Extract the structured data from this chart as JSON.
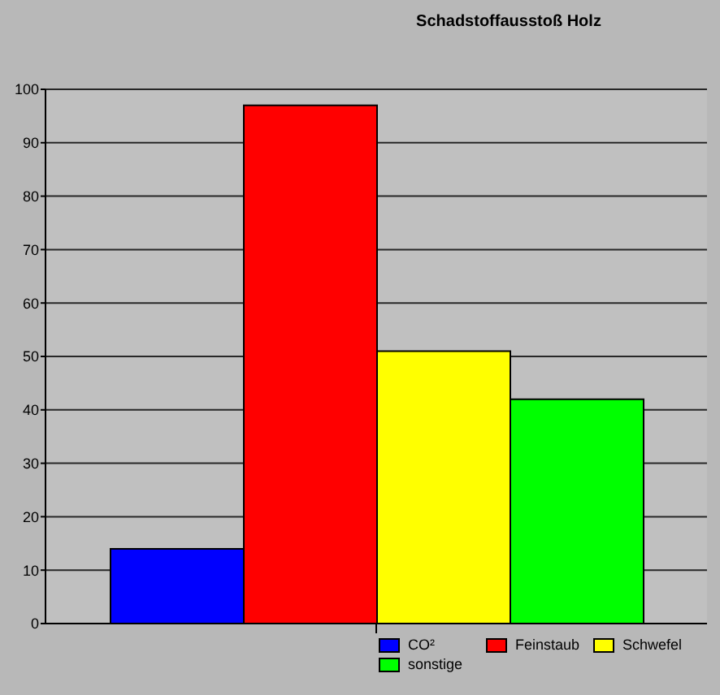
{
  "chart_data": {
    "type": "bar",
    "title": "Schadstoffausstoß Holz",
    "categories": [
      null
    ],
    "series": [
      {
        "name": "CO²",
        "color": "#0000ff",
        "values": [
          14
        ]
      },
      {
        "name": "Feinstaub",
        "color": "#ff0000",
        "values": [
          97
        ]
      },
      {
        "name": "Schwefel",
        "color": "#ffff00",
        "values": [
          51
        ]
      },
      {
        "name": "sonstige",
        "color": "#00ff00",
        "values": [
          42
        ]
      }
    ],
    "ylim": [
      0,
      100
    ],
    "yticks": [
      0,
      10,
      20,
      30,
      40,
      50,
      60,
      70,
      80,
      90,
      100
    ],
    "grid": "y",
    "legend": "bottom right"
  }
}
